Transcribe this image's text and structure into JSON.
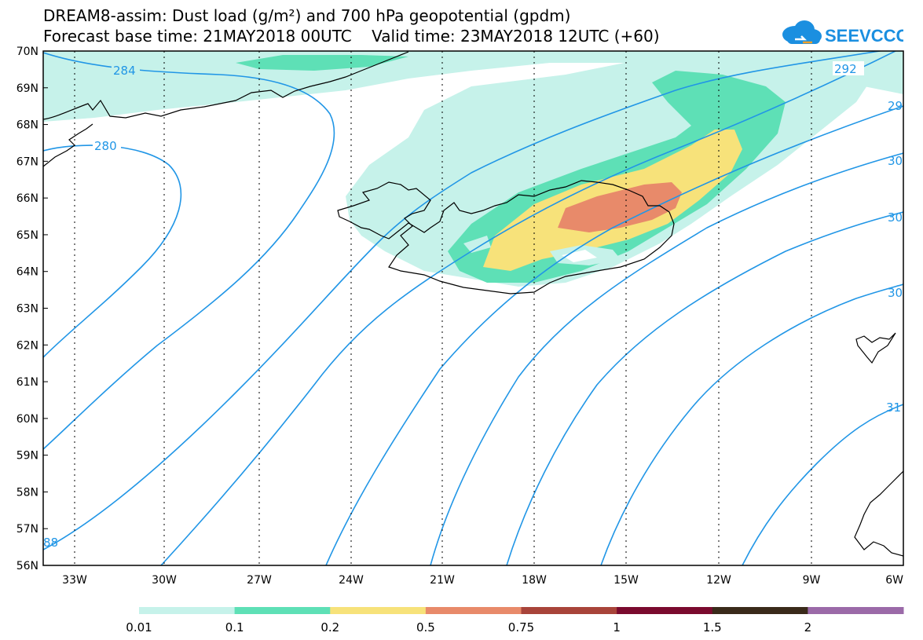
{
  "header": {
    "title_line1": "DREAM8-assim: Dust load (g/m²) and 700 hPa geopotential (gpdm)",
    "title_line2": "Forecast base time: 21MAY2018 00UTC    Valid time: 23MAY2018 12UTC (+60)"
  },
  "logo": {
    "text": "SEEVCCC",
    "icon": "cloud-icon",
    "color": "#1b8fe0"
  },
  "map": {
    "lat_labels": [
      "70N",
      "69N",
      "68N",
      "67N",
      "66N",
      "65N",
      "64N",
      "63N",
      "62N",
      "61N",
      "60N",
      "59N",
      "58N",
      "57N",
      "56N"
    ],
    "lon_labels": [
      "33W",
      "30W",
      "27W",
      "24W",
      "21W",
      "18W",
      "15W",
      "12W",
      "9W",
      "6W"
    ],
    "contour_labels": [
      "284",
      "280",
      "292",
      "29",
      "30",
      "30",
      "30",
      "31",
      "88"
    ],
    "contour_color": "#2196e6"
  },
  "colorbar": {
    "colors": [
      "#c6f2ea",
      "#5ee0b6",
      "#f7e27a",
      "#e88a6a",
      "#a8443a",
      "#7a0a2e",
      "#3a2a1a",
      "#9b6aa8"
    ],
    "labels": [
      "0.01",
      "0.1",
      "0.2",
      "0.5",
      "0.75",
      "1",
      "1.5",
      "2"
    ]
  }
}
